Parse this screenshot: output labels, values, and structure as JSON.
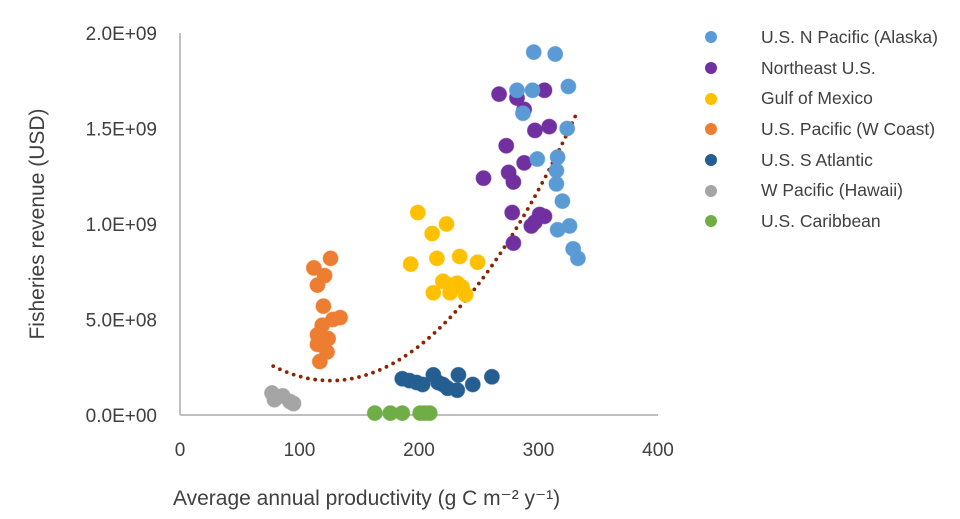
{
  "chart_data": {
    "type": "scatter",
    "title": "",
    "xlabel": "Average annual productivity (g C m⁻² y⁻¹)",
    "ylabel": "Fisheries revenue (USD)",
    "xlim": [
      0,
      400
    ],
    "ylim": [
      0,
      2000000000
    ],
    "x_ticks": [
      0,
      100,
      200,
      300,
      400
    ],
    "x_tick_labels": [
      "0",
      "100",
      "200",
      "300",
      "400"
    ],
    "y_ticks": [
      0,
      500000000,
      1000000000,
      1500000000,
      2000000000
    ],
    "y_tick_labels": [
      "0.0E+00",
      "5.0E+08",
      "1.0E+09",
      "1.5E+09",
      "2.0E+09"
    ],
    "grid": false,
    "legend_position": "right",
    "series": [
      {
        "name": "U.S. N Pacific (Alaska)",
        "color": "#5B9BD5",
        "points": [
          [
            296,
            1900000000.0
          ],
          [
            314,
            1890000000.0
          ],
          [
            325,
            1720000000.0
          ],
          [
            282,
            1700000000.0
          ],
          [
            295,
            1700000000.0
          ],
          [
            287,
            1580000000.0
          ],
          [
            324,
            1500000000.0
          ],
          [
            299,
            1340000000.0
          ],
          [
            316,
            1350000000.0
          ],
          [
            315,
            1280000000.0
          ],
          [
            315,
            1210000000.0
          ],
          [
            320,
            1120000000.0
          ],
          [
            326,
            990000000.0
          ],
          [
            316,
            970000000.0
          ],
          [
            329,
            870000000.0
          ],
          [
            333,
            820000000.0
          ]
        ]
      },
      {
        "name": "Northeast U.S.",
        "color": "#7030A0",
        "points": [
          [
            267,
            1680000000.0
          ],
          [
            305,
            1700000000.0
          ],
          [
            282,
            1660000000.0
          ],
          [
            288,
            1600000000.0
          ],
          [
            309,
            1510000000.0
          ],
          [
            297,
            1490000000.0
          ],
          [
            273,
            1410000000.0
          ],
          [
            288,
            1320000000.0
          ],
          [
            254,
            1240000000.0
          ],
          [
            275,
            1270000000.0
          ],
          [
            279,
            1220000000.0
          ],
          [
            278,
            1060000000.0
          ],
          [
            301,
            1050000000.0
          ],
          [
            305,
            1040000000.0
          ],
          [
            297,
            1010000000.0
          ],
          [
            294,
            990000000.0
          ],
          [
            279,
            900000000.0
          ]
        ]
      },
      {
        "name": "Gulf of Mexico",
        "color": "#FFC000",
        "points": [
          [
            199,
            1060000000.0
          ],
          [
            223,
            1000000000.0
          ],
          [
            211,
            950000000.0
          ],
          [
            193,
            790000000.0
          ],
          [
            215,
            820000000.0
          ],
          [
            234,
            830000000.0
          ],
          [
            249,
            800000000.0
          ],
          [
            220,
            700000000.0
          ],
          [
            232,
            690000000.0
          ],
          [
            227,
            680000000.0
          ],
          [
            212,
            640000000.0
          ],
          [
            226,
            640000000.0
          ],
          [
            239,
            630000000.0
          ],
          [
            236,
            670000000.0
          ]
        ]
      },
      {
        "name": "U.S. Pacific (W Coast)",
        "color": "#ED7D31",
        "points": [
          [
            126,
            820000000.0
          ],
          [
            112,
            770000000.0
          ],
          [
            121,
            730000000.0
          ],
          [
            115,
            680000000.0
          ],
          [
            120,
            570000000.0
          ],
          [
            134,
            510000000.0
          ],
          [
            128,
            500000000.0
          ],
          [
            119,
            470000000.0
          ],
          [
            115,
            420000000.0
          ],
          [
            124,
            400000000.0
          ],
          [
            115,
            370000000.0
          ],
          [
            123,
            330000000.0
          ],
          [
            117,
            280000000.0
          ]
        ]
      },
      {
        "name": "U.S. S Atlantic",
        "color": "#255E91",
        "points": [
          [
            186,
            190000000.0
          ],
          [
            192,
            180000000.0
          ],
          [
            198,
            170000000.0
          ],
          [
            203,
            160000000.0
          ],
          [
            212,
            210000000.0
          ],
          [
            216,
            170000000.0
          ],
          [
            220,
            160000000.0
          ],
          [
            224,
            140000000.0
          ],
          [
            233,
            210000000.0
          ],
          [
            232,
            130000000.0
          ],
          [
            245,
            160000000.0
          ],
          [
            261,
            200000000.0
          ]
        ]
      },
      {
        "name": "W Pacific (Hawaii)",
        "color": "#A5A5A5",
        "points": [
          [
            77,
            115000000.0
          ],
          [
            80,
            90000000.0
          ],
          [
            86,
            100000000.0
          ],
          [
            79,
            80000000.0
          ],
          [
            92,
            70000000.0
          ],
          [
            95,
            60000000.0
          ]
        ]
      },
      {
        "name": "U.S. Caribbean",
        "color": "#70AD47",
        "points": [
          [
            163,
            10000000.0
          ],
          [
            176,
            10000000.0
          ],
          [
            186,
            10000000.0
          ],
          [
            201,
            10000000.0
          ],
          [
            205,
            10000000.0
          ],
          [
            209,
            10000000.0
          ]
        ]
      }
    ],
    "trendline": {
      "type": "polynomial-2",
      "style": "dotted",
      "color": "#8B2500",
      "x_range": [
        78,
        332
      ],
      "vertex": [
        126,
        180000000
      ],
      "a": 33000
    }
  }
}
